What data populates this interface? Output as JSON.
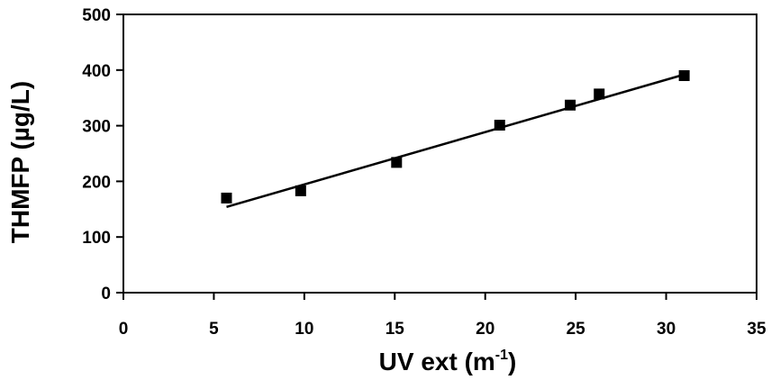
{
  "chart_data": {
    "type": "scatter",
    "title": "",
    "xlabel": "UV ext (m",
    "xlabel_superscript": "-1",
    "xlabel_suffix": ")",
    "ylabel": "THMFP (µg/L)",
    "xlim": [
      0,
      35
    ],
    "ylim": [
      0,
      500
    ],
    "x_ticks": [
      0,
      5,
      10,
      15,
      20,
      25,
      30,
      35
    ],
    "y_ticks": [
      0,
      100,
      200,
      300,
      400,
      500
    ],
    "grid": false,
    "legend": "none",
    "series": [
      {
        "marker": "square",
        "color": "#000000",
        "points": [
          {
            "x": 5.7,
            "y": 170
          },
          {
            "x": 9.8,
            "y": 183
          },
          {
            "x": 15.1,
            "y": 234
          },
          {
            "x": 20.8,
            "y": 301
          },
          {
            "x": 24.7,
            "y": 337
          },
          {
            "x": 26.3,
            "y": 357
          },
          {
            "x": 31.0,
            "y": 390
          }
        ]
      }
    ],
    "trendline": {
      "type": "linear",
      "x_start": 5.7,
      "y_start": 154,
      "x_end": 31.0,
      "y_end": 392,
      "color": "#000000"
    }
  }
}
